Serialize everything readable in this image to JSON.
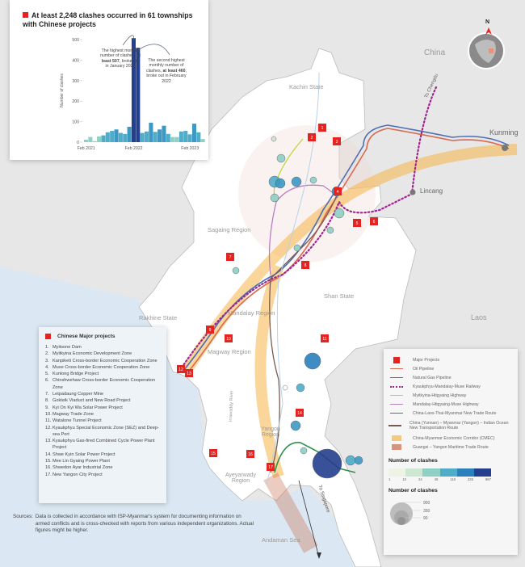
{
  "map_labels": {
    "china": "China",
    "kunming": "Kunming",
    "lincang": "Lincang",
    "to_chengdu": "To Chengdu",
    "kachin": "Kachin State",
    "sagaing": "Sagaing Region",
    "shan": "Shan State",
    "rakhine": "Rakhine State",
    "mandalay": "Mandalay Region",
    "magway": "Magway Region",
    "irrawaddy": "Irrawaddy River",
    "yangon": "Yangon Region",
    "ayeyarwady": "Ayeyarwady Region",
    "laos": "Laos",
    "andaman": "Andaman Sea",
    "to_singapore": "To Singapore",
    "north": "N"
  },
  "colors": {
    "project": "#e52421",
    "oil": "#d9694f",
    "gas": "#4a6fb5",
    "railway": "#a0238f",
    "myitkyina_hwy": "#bcd53b",
    "mandalay_hwy": "#b77fc0",
    "new_trade": "#2f8f4e",
    "transport": "#7a5a4e",
    "cmec": "#f6b548",
    "maritime": "#c96a4e"
  },
  "chart_data": {
    "type": "bar",
    "title": "At least 2,248 clashes occurred in 61 townships with Chinese projects",
    "ylabel": "Number of clashes",
    "xlabel": "",
    "ylim": [
      0,
      500
    ],
    "yticks": [
      "0",
      "100",
      "200",
      "300",
      "400",
      "500"
    ],
    "xtick_labels": [
      "Feb 2021",
      "Feb 2022",
      "Feb 2023"
    ],
    "categories": [
      "Feb 2021",
      "Mar 2021",
      "Apr 2021",
      "May 2021",
      "Jun 2021",
      "Jul 2021",
      "Aug 2021",
      "Sep 2021",
      "Oct 2021",
      "Nov 2021",
      "Dec 2021",
      "Jan 2022",
      "Feb 2022",
      "Mar 2022",
      "Apr 2022",
      "May 2022",
      "Jun 2022",
      "Jul 2022",
      "Aug 2022",
      "Sep 2022",
      "Oct 2022",
      "Nov 2022",
      "Dec 2022",
      "Jan 2023",
      "Feb 2023",
      "Mar 2023",
      "Apr 2023",
      "May 2023"
    ],
    "values": [
      12,
      25,
      5,
      28,
      33,
      48,
      55,
      62,
      45,
      40,
      75,
      507,
      460,
      45,
      52,
      95,
      50,
      62,
      80,
      40,
      25,
      25,
      52,
      55,
      38,
      90,
      48,
      15
    ],
    "annotations": [
      {
        "text_pre": "The highest monthly number of clashes, ",
        "bold": "at least 507",
        "text_post": ", broke out in January 2022"
      },
      {
        "text_pre": "The second highest monthly number of clashes, ",
        "bold": "at least 460",
        "text_post": ", broke out in February 2022"
      }
    ]
  },
  "projects": {
    "heading": "Chinese Major projects",
    "items": [
      "Myitsone Dam",
      "Myitkyina Economic Development Zone",
      "Kanpiketi Cross-border Economic Cooperation Zone",
      "Muse Cross-border Economic Cooperation Zone",
      "Kunlong Bridge Project",
      "Chinshwehaw Cross-border Economic Cooperation Zone",
      "Letpadaung Copper Mine",
      "Gokteik Viaduct and New Road Project",
      "Kyi On Kyi Wa Solar Power Project",
      "Magway Trade Zone",
      "Watalone Tunnel Project",
      "Kyaukphyu Special Economic Zone (SEZ) and Deep-sea Port",
      "Kyaukphyu Gas-fired Combined Cycle Power Plant Project",
      "Shwe Kyin Solar Power Project",
      "Mee Lin Gyaing Power Plant",
      "Shwedon Ayar Industrial Zone",
      "New Yangon City Project"
    ]
  },
  "legend": {
    "items": [
      {
        "label": "Major Projects",
        "sym": "square",
        "color": "#e52421"
      },
      {
        "label": "Oil Pipeline",
        "sym": "line",
        "color": "#d9694f"
      },
      {
        "label": "Natural Gas Pipeline",
        "sym": "line",
        "color": "#4a6fb5"
      },
      {
        "label": "Kyaukphyu-Mandalay-Muse Railway",
        "sym": "dots",
        "color": "#a0238f"
      },
      {
        "label": "Myitkyina-Htigyaing Highway",
        "sym": "line",
        "color": "#bcd53b"
      },
      {
        "label": "Mandalay-Htigyaing-Muse Highway",
        "sym": "line",
        "color": "#b77fc0"
      },
      {
        "label": "China-Laos-Thai-Myanmar New Trade Route",
        "sym": "line",
        "color": "#2f8f4e"
      },
      {
        "label": "China (Yunnan) – Myanmar (Yangon) – Indian Ocean New Transportation Route",
        "sym": "line",
        "color": "#7a5a4e"
      },
      {
        "label": "China-Myanmar Economic Corridor (CMEC)",
        "sym": "band",
        "color": "#f6b548"
      },
      {
        "label": "Guangxi – Yangon Maritime Trade Route",
        "sym": "band",
        "color": "#c96a4e"
      }
    ],
    "clash_color_heading": "Number of clashes",
    "clash_color_ticks": [
      "1",
      "10",
      "24",
      "49",
      "119",
      "225",
      "867"
    ],
    "clash_color_scale": [
      "#eef3e6",
      "#cde8d2",
      "#8fd0c4",
      "#4fadc9",
      "#2b7fbd",
      "#243f8d"
    ],
    "clash_size_heading": "Number of clashes",
    "clash_size_ticks": [
      "900",
      "350",
      "90"
    ]
  },
  "sources": {
    "label": "Sources:",
    "text": "Data is collected in accordance with ISP-Myanmar's system for documenting information on armed conflicts and is cross-checked with reports from various independent organizations. Actual figures might be higher."
  }
}
